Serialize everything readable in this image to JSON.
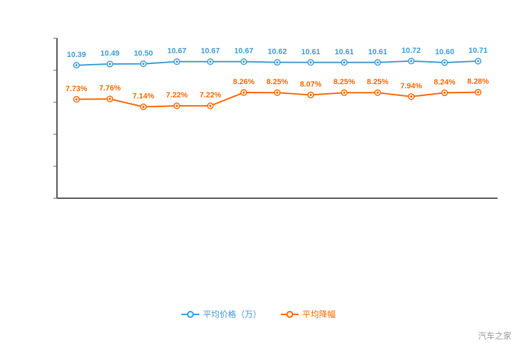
{
  "watermark": "汽车之家",
  "colors": {
    "price": "#3d9bd4",
    "discount": "#ff6600",
    "axis": "#555555",
    "watermark_text": "#999999"
  },
  "legend": {
    "price_label": "平均价格（万）",
    "discount_label": "平均降幅"
  },
  "chart_data": {
    "type": "line",
    "title": "",
    "xlabel": "",
    "ylabel": "",
    "x_tick_labels": [],
    "ylim": [
      0,
      12.5
    ],
    "grid": false,
    "legend_position": "bottom",
    "series": [
      {
        "name": "平均价格（万）",
        "color": "#3d9bd4",
        "values": [
          10.39,
          10.49,
          10.5,
          10.67,
          10.67,
          10.67,
          10.62,
          10.61,
          10.61,
          10.61,
          10.72,
          10.6,
          10.71
        ],
        "labels": [
          "10.39",
          "10.49",
          "10.50",
          "10.67",
          "10.67",
          "10.67",
          "10.62",
          "10.61",
          "10.61",
          "10.61",
          "10.72",
          "10.60",
          "10.71"
        ]
      },
      {
        "name": "平均降幅",
        "color": "#ff6600",
        "values": [
          7.73,
          7.76,
          7.14,
          7.22,
          7.22,
          8.26,
          8.25,
          8.07,
          8.25,
          8.25,
          7.94,
          8.24,
          8.28
        ],
        "labels": [
          "7.73%",
          "7.76%",
          "7.14%",
          "7.22%",
          "7.22%",
          "8.26%",
          "8.25%",
          "8.07%",
          "8.25%",
          "8.25%",
          "7.94%",
          "8.24%",
          "8.28%"
        ]
      }
    ]
  }
}
